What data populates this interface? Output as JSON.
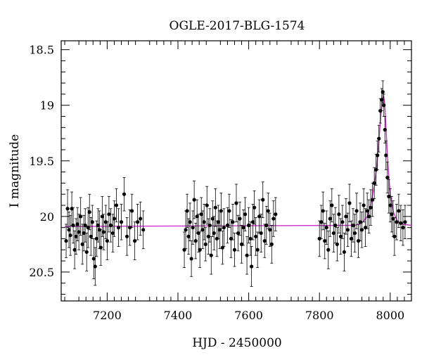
{
  "chart_data": {
    "type": "scatter",
    "title": "OGLE-2017-BLG-1574",
    "xlabel": "HJD - 2450000",
    "ylabel": "I magnitude",
    "xlim": [
      7070,
      8060
    ],
    "ylim": [
      18.42,
      20.76
    ],
    "y_inverted": true,
    "x_ticks": [
      7200,
      7400,
      7600,
      7800,
      8000
    ],
    "y_ticks": [
      18.5,
      19,
      19.5,
      20,
      20.5
    ],
    "x_tick_labels": [
      "7200",
      "7400",
      "7600",
      "7800",
      "8000"
    ],
    "y_tick_labels": [
      "18.5",
      "19",
      "19.5",
      "20",
      "20.5"
    ],
    "colors": {
      "points": "#000000",
      "model": "#cc33cc",
      "axes": "#000000"
    },
    "series": [
      {
        "type": "scatter",
        "points": [
          [
            7084,
            20.22,
            0.15
          ],
          [
            7088,
            19.93,
            0.17
          ],
          [
            7092,
            20.12,
            0.16
          ],
          [
            7096,
            20.17,
            0.18
          ],
          [
            7100,
            19.93,
            0.15
          ],
          [
            7104,
            20.08,
            0.16
          ],
          [
            7108,
            20.3,
            0.17
          ],
          [
            7112,
            20.18,
            0.16
          ],
          [
            7116,
            20.07,
            0.15
          ],
          [
            7120,
            20.14,
            0.16
          ],
          [
            7125,
            20.0,
            0.17
          ],
          [
            7130,
            20.25,
            0.18
          ],
          [
            7134,
            20.15,
            0.16
          ],
          [
            7138,
            20.08,
            0.15
          ],
          [
            7142,
            20.32,
            0.17
          ],
          [
            7146,
            20.1,
            0.18
          ],
          [
            7150,
            19.96,
            0.16
          ],
          [
            7154,
            20.18,
            0.17
          ],
          [
            7158,
            20.05,
            0.15
          ],
          [
            7162,
            20.38,
            0.18
          ],
          [
            7166,
            20.45,
            0.17
          ],
          [
            7170,
            20.2,
            0.16
          ],
          [
            7174,
            20.08,
            0.15
          ],
          [
            7178,
            20.12,
            0.17
          ],
          [
            7182,
            20.28,
            0.16
          ],
          [
            7186,
            20.0,
            0.18
          ],
          [
            7190,
            20.14,
            0.16
          ],
          [
            7196,
            20.05,
            0.15
          ],
          [
            7200,
            20.22,
            0.17
          ],
          [
            7205,
            19.98,
            0.16
          ],
          [
            7210,
            20.08,
            0.15
          ],
          [
            7216,
            20.15,
            0.17
          ],
          [
            7220,
            20.02,
            0.16
          ],
          [
            7226,
            19.9,
            0.15
          ],
          [
            7232,
            20.1,
            0.17
          ],
          [
            7240,
            20.05,
            0.16
          ],
          [
            7248,
            19.8,
            0.15
          ],
          [
            7256,
            20.18,
            0.17
          ],
          [
            7264,
            20.1,
            0.16
          ],
          [
            7270,
            19.95,
            0.15
          ],
          [
            7278,
            20.22,
            0.17
          ],
          [
            7286,
            20.05,
            0.16
          ],
          [
            7294,
            20.02,
            0.15
          ],
          [
            7302,
            20.12,
            0.17
          ],
          [
            7418,
            20.3,
            0.16
          ],
          [
            7422,
            20.12,
            0.17
          ],
          [
            7426,
            19.95,
            0.15
          ],
          [
            7430,
            20.18,
            0.16
          ],
          [
            7434,
            20.05,
            0.17
          ],
          [
            7438,
            20.38,
            0.16
          ],
          [
            7442,
            20.1,
            0.15
          ],
          [
            7446,
            19.85,
            0.17
          ],
          [
            7450,
            20.22,
            0.16
          ],
          [
            7454,
            20.0,
            0.15
          ],
          [
            7458,
            20.15,
            0.17
          ],
          [
            7462,
            20.3,
            0.16
          ],
          [
            7466,
            19.98,
            0.15
          ],
          [
            7470,
            20.12,
            0.17
          ],
          [
            7474,
            20.05,
            0.16
          ],
          [
            7478,
            20.25,
            0.15
          ],
          [
            7482,
            19.9,
            0.17
          ],
          [
            7486,
            20.18,
            0.16
          ],
          [
            7490,
            20.08,
            0.15
          ],
          [
            7494,
            20.35,
            0.17
          ],
          [
            7498,
            20.02,
            0.16
          ],
          [
            7502,
            20.15,
            0.15
          ],
          [
            7506,
            19.92,
            0.17
          ],
          [
            7510,
            20.2,
            0.16
          ],
          [
            7514,
            20.05,
            0.15
          ],
          [
            7518,
            20.12,
            0.17
          ],
          [
            7522,
            19.95,
            0.16
          ],
          [
            7526,
            20.28,
            0.15
          ],
          [
            7530,
            20.1,
            0.17
          ],
          [
            7540,
            20.08,
            0.16
          ],
          [
            7545,
            19.95,
            0.15
          ],
          [
            7550,
            20.2,
            0.17
          ],
          [
            7555,
            20.05,
            0.16
          ],
          [
            7560,
            20.3,
            0.15
          ],
          [
            7565,
            19.88,
            0.17
          ],
          [
            7570,
            20.15,
            0.16
          ],
          [
            7575,
            20.02,
            0.15
          ],
          [
            7580,
            20.25,
            0.17
          ],
          [
            7585,
            20.1,
            0.16
          ],
          [
            7590,
            19.98,
            0.15
          ],
          [
            7595,
            20.35,
            0.17
          ],
          [
            7600,
            20.08,
            0.16
          ],
          [
            7605,
            20.2,
            0.15
          ],
          [
            7608,
            20.45,
            0.18
          ],
          [
            7612,
            20.05,
            0.16
          ],
          [
            7616,
            19.92,
            0.15
          ],
          [
            7620,
            20.18,
            0.17
          ],
          [
            7625,
            20.3,
            0.16
          ],
          [
            7630,
            20.0,
            0.15
          ],
          [
            7635,
            20.15,
            0.17
          ],
          [
            7640,
            19.85,
            0.16
          ],
          [
            7645,
            20.22,
            0.15
          ],
          [
            7650,
            20.08,
            0.17
          ],
          [
            7655,
            19.95,
            0.16
          ],
          [
            7660,
            20.12,
            0.15
          ],
          [
            7665,
            20.25,
            0.17
          ],
          [
            7670,
            20.02,
            0.16
          ],
          [
            7676,
            19.98,
            0.15
          ],
          [
            7800,
            20.2,
            0.16
          ],
          [
            7805,
            20.05,
            0.15
          ],
          [
            7810,
            19.95,
            0.17
          ],
          [
            7815,
            20.22,
            0.16
          ],
          [
            7820,
            20.1,
            0.15
          ],
          [
            7825,
            20.3,
            0.17
          ],
          [
            7830,
            20.02,
            0.16
          ],
          [
            7835,
            19.9,
            0.15
          ],
          [
            7840,
            20.15,
            0.17
          ],
          [
            7845,
            20.08,
            0.16
          ],
          [
            7850,
            20.25,
            0.15
          ],
          [
            7855,
            19.98,
            0.17
          ],
          [
            7860,
            20.18,
            0.16
          ],
          [
            7865,
            20.05,
            0.15
          ],
          [
            7870,
            20.32,
            0.17
          ],
          [
            7875,
            20.0,
            0.16
          ],
          [
            7880,
            20.12,
            0.15
          ],
          [
            7885,
            19.88,
            0.17
          ],
          [
            7890,
            20.2,
            0.16
          ],
          [
            7895,
            20.08,
            0.15
          ],
          [
            7900,
            20.15,
            0.17
          ],
          [
            7905,
            19.95,
            0.16
          ],
          [
            7910,
            20.22,
            0.15
          ],
          [
            7915,
            20.05,
            0.17
          ],
          [
            7920,
            20.12,
            0.16
          ],
          [
            7925,
            19.9,
            0.15
          ],
          [
            7930,
            20.1,
            0.17
          ],
          [
            7935,
            19.95,
            0.16
          ],
          [
            7940,
            20.0,
            0.15
          ],
          [
            7945,
            19.92,
            0.16
          ],
          [
            7950,
            19.85,
            0.15
          ],
          [
            7955,
            19.7,
            0.14
          ],
          [
            7960,
            19.58,
            0.14
          ],
          [
            7964,
            19.45,
            0.13
          ],
          [
            7968,
            19.3,
            0.12
          ],
          [
            7972,
            19.05,
            0.11
          ],
          [
            7976,
            18.95,
            0.1
          ],
          [
            7979,
            18.88,
            0.1
          ],
          [
            7982,
            19.0,
            0.1
          ],
          [
            7985,
            19.22,
            0.12
          ],
          [
            7988,
            19.45,
            0.13
          ],
          [
            7992,
            19.65,
            0.14
          ],
          [
            7996,
            19.82,
            0.15
          ],
          [
            8000,
            19.9,
            0.15
          ],
          [
            8004,
            19.98,
            0.16
          ],
          [
            8008,
            20.02,
            0.16
          ],
          [
            8012,
            20.18,
            0.17
          ],
          [
            8018,
            20.05,
            0.16
          ],
          [
            8024,
            19.95,
            0.15
          ],
          [
            8030,
            20.06,
            0.16
          ],
          [
            8036,
            20.1,
            0.16
          ],
          [
            8042,
            20.05,
            0.15
          ]
        ]
      },
      {
        "type": "line",
        "points": [
          [
            7080,
            20.09
          ],
          [
            7900,
            20.08
          ],
          [
            7920,
            20.06
          ],
          [
            7935,
            20.0
          ],
          [
            7945,
            19.9
          ],
          [
            7955,
            19.72
          ],
          [
            7962,
            19.55
          ],
          [
            7968,
            19.32
          ],
          [
            7974,
            19.08
          ],
          [
            7978,
            18.95
          ],
          [
            7981,
            18.92
          ],
          [
            7984,
            18.97
          ],
          [
            7988,
            19.2
          ],
          [
            7993,
            19.5
          ],
          [
            8000,
            19.8
          ],
          [
            8010,
            19.97
          ],
          [
            8020,
            20.04
          ],
          [
            8035,
            20.07
          ],
          [
            8060,
            20.08
          ]
        ]
      }
    ]
  }
}
